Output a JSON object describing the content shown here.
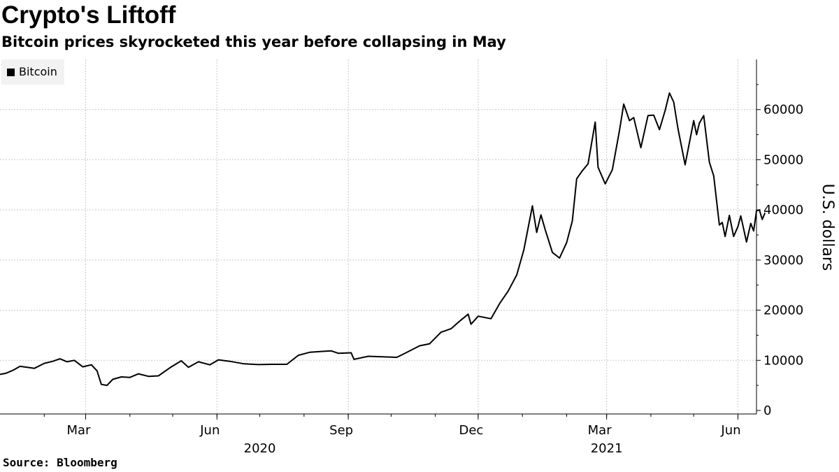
{
  "title": "Crypto's Liftoff",
  "subtitle": "Bitcoin prices skyrocketed this year before collapsing in May",
  "source": "Source: Bloomberg",
  "chart_data": {
    "type": "line",
    "ylabel": "U.S. dollars",
    "ylim": [
      0,
      70000
    ],
    "yticks": [
      0,
      10000,
      20000,
      30000,
      40000,
      50000,
      60000
    ],
    "xlim": [
      "2020-01-01",
      "2021-06-14"
    ],
    "x_ticks": [
      {
        "date": "2020-03-01",
        "label": "Mar"
      },
      {
        "date": "2020-06-01",
        "label": "Jun"
      },
      {
        "date": "2020-09-01",
        "label": "Sep"
      },
      {
        "date": "2020-12-01",
        "label": "Dec"
      },
      {
        "date": "2021-03-01",
        "label": "Mar"
      },
      {
        "date": "2021-06-01",
        "label": "Jun"
      }
    ],
    "year_labels": [
      {
        "date": "2020-07-01",
        "label": "2020"
      },
      {
        "date": "2021-03-01",
        "label": "2021"
      }
    ],
    "grid": true,
    "legend_position": "top-left",
    "series": [
      {
        "name": "Bitcoin",
        "color": "#000000",
        "points": [
          [
            "2020-01-01",
            7200
          ],
          [
            "2020-01-05",
            7400
          ],
          [
            "2020-01-10",
            8000
          ],
          [
            "2020-01-15",
            8800
          ],
          [
            "2020-01-20",
            8600
          ],
          [
            "2020-01-25",
            8400
          ],
          [
            "2020-02-01",
            9400
          ],
          [
            "2020-02-07",
            9800
          ],
          [
            "2020-02-12",
            10300
          ],
          [
            "2020-02-17",
            9700
          ],
          [
            "2020-02-22",
            10000
          ],
          [
            "2020-02-28",
            8700
          ],
          [
            "2020-03-05",
            9100
          ],
          [
            "2020-03-09",
            7900
          ],
          [
            "2020-03-12",
            5200
          ],
          [
            "2020-03-16",
            5000
          ],
          [
            "2020-03-20",
            6200
          ],
          [
            "2020-03-26",
            6700
          ],
          [
            "2020-04-01",
            6600
          ],
          [
            "2020-04-07",
            7300
          ],
          [
            "2020-04-14",
            6800
          ],
          [
            "2020-04-21",
            6900
          ],
          [
            "2020-04-30",
            8700
          ],
          [
            "2020-05-07",
            9900
          ],
          [
            "2020-05-12",
            8600
          ],
          [
            "2020-05-19",
            9700
          ],
          [
            "2020-05-27",
            9100
          ],
          [
            "2020-06-02",
            10100
          ],
          [
            "2020-06-10",
            9800
          ],
          [
            "2020-06-20",
            9300
          ],
          [
            "2020-06-30",
            9150
          ],
          [
            "2020-07-10",
            9200
          ],
          [
            "2020-07-20",
            9200
          ],
          [
            "2020-07-28",
            11000
          ],
          [
            "2020-08-05",
            11600
          ],
          [
            "2020-08-15",
            11800
          ],
          [
            "2020-08-20",
            11900
          ],
          [
            "2020-08-25",
            11400
          ],
          [
            "2020-09-03",
            11500
          ],
          [
            "2020-09-05",
            10200
          ],
          [
            "2020-09-15",
            10800
          ],
          [
            "2020-09-25",
            10700
          ],
          [
            "2020-10-05",
            10600
          ],
          [
            "2020-10-10",
            11300
          ],
          [
            "2020-10-21",
            12900
          ],
          [
            "2020-10-28",
            13300
          ],
          [
            "2020-11-05",
            15600
          ],
          [
            "2020-11-12",
            16300
          ],
          [
            "2020-11-18",
            17800
          ],
          [
            "2020-11-24",
            19200
          ],
          [
            "2020-11-26",
            17200
          ],
          [
            "2020-12-01",
            18800
          ],
          [
            "2020-12-10",
            18300
          ],
          [
            "2020-12-16",
            21300
          ],
          [
            "2020-12-22",
            23800
          ],
          [
            "2020-12-28",
            27000
          ],
          [
            "2021-01-02",
            32000
          ],
          [
            "2021-01-08",
            40800
          ],
          [
            "2021-01-11",
            35500
          ],
          [
            "2021-01-14",
            39000
          ],
          [
            "2021-01-17",
            36000
          ],
          [
            "2021-01-22",
            31500
          ],
          [
            "2021-01-27",
            30400
          ],
          [
            "2021-02-01",
            33500
          ],
          [
            "2021-02-05",
            37800
          ],
          [
            "2021-02-08",
            46200
          ],
          [
            "2021-02-12",
            47800
          ],
          [
            "2021-02-16",
            49200
          ],
          [
            "2021-02-21",
            57500
          ],
          [
            "2021-02-23",
            48500
          ],
          [
            "2021-02-28",
            45200
          ],
          [
            "2021-03-05",
            48000
          ],
          [
            "2021-03-10",
            55800
          ],
          [
            "2021-03-13",
            61100
          ],
          [
            "2021-03-17",
            57800
          ],
          [
            "2021-03-20",
            58400
          ],
          [
            "2021-03-25",
            52400
          ],
          [
            "2021-03-30",
            58800
          ],
          [
            "2021-04-03",
            58900
          ],
          [
            "2021-04-07",
            56000
          ],
          [
            "2021-04-11",
            59800
          ],
          [
            "2021-04-14",
            63300
          ],
          [
            "2021-04-17",
            61500
          ],
          [
            "2021-04-20",
            56200
          ],
          [
            "2021-04-25",
            49000
          ],
          [
            "2021-05-01",
            57800
          ],
          [
            "2021-05-03",
            55000
          ],
          [
            "2021-05-05",
            57300
          ],
          [
            "2021-05-08",
            58800
          ],
          [
            "2021-05-12",
            49500
          ],
          [
            "2021-05-15",
            46800
          ],
          [
            "2021-05-19",
            37000
          ],
          [
            "2021-05-21",
            37500
          ],
          [
            "2021-05-23",
            34700
          ],
          [
            "2021-05-26",
            38900
          ],
          [
            "2021-05-29",
            34700
          ],
          [
            "2021-06-01",
            36700
          ],
          [
            "2021-06-03",
            38800
          ],
          [
            "2021-06-07",
            33600
          ],
          [
            "2021-06-10",
            37300
          ],
          [
            "2021-06-12",
            35800
          ],
          [
            "2021-06-14",
            39800
          ],
          [
            "2021-06-16",
            40000
          ],
          [
            "2021-06-18",
            38100
          ],
          [
            "2021-06-20",
            39400
          ]
        ]
      }
    ]
  }
}
